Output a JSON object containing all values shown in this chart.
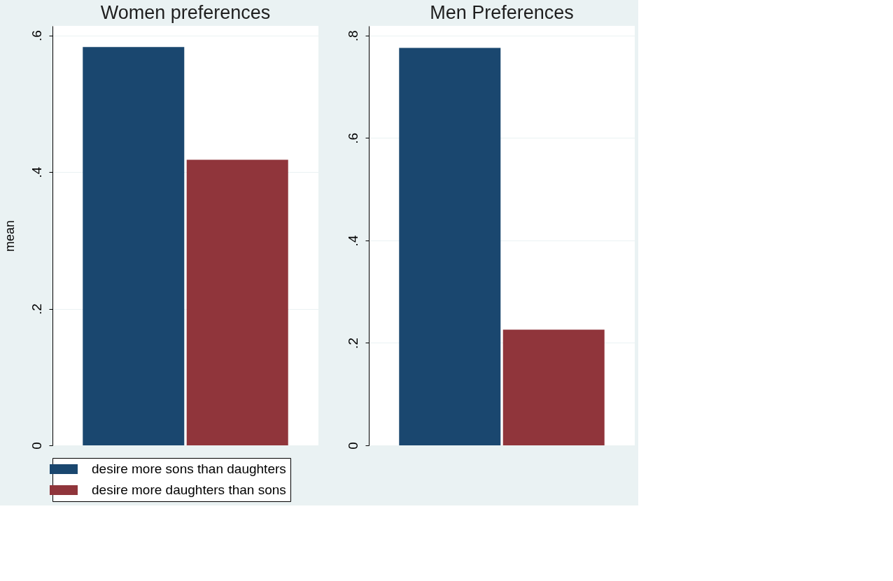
{
  "chart_data": [
    {
      "type": "bar",
      "title": "Women preferences",
      "ylabel": "mean",
      "categories": [
        null
      ],
      "ylim": [
        0,
        0.614
      ],
      "yticks": [
        {
          "value": 0,
          "label": "0"
        },
        {
          "value": 0.2,
          "label": ".2"
        },
        {
          "value": 0.4,
          "label": ".4"
        },
        {
          "value": 0.6,
          "label": ".6"
        }
      ],
      "grid": "y",
      "legend": "bottom",
      "series": [
        {
          "name": "desire more sons than daughters",
          "color": "#1a476f",
          "values": [
            0.583
          ]
        },
        {
          "name": "desire more daughters than sons",
          "color": "#90353b",
          "values": [
            0.418
          ]
        }
      ]
    },
    {
      "type": "bar",
      "title": "Men Preferences",
      "categories": [
        null
      ],
      "ylim": [
        0,
        0.819
      ],
      "yticks": [
        {
          "value": 0,
          "label": "0"
        },
        {
          "value": 0.2,
          "label": ".2"
        },
        {
          "value": 0.4,
          "label": ".4"
        },
        {
          "value": 0.6,
          "label": ".6"
        },
        {
          "value": 0.8,
          "label": ".8"
        }
      ],
      "grid": "y",
      "series": [
        {
          "color": "#1a476f",
          "values": [
            0.776
          ]
        },
        {
          "color": "#90353b",
          "values": [
            0.226
          ]
        }
      ]
    }
  ]
}
